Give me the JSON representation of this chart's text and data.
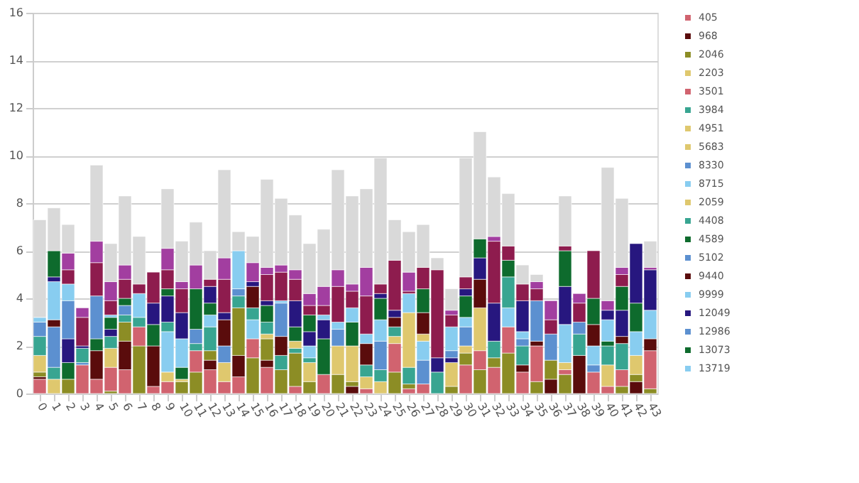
{
  "chart_data": {
    "type": "bar",
    "stacked": true,
    "categories": [
      "0",
      "1",
      "2",
      "3",
      "4",
      "5",
      "6",
      "7",
      "8",
      "9",
      "10",
      "11",
      "12",
      "13",
      "14",
      "15",
      "16",
      "17",
      "18",
      "19",
      "20",
      "21",
      "22",
      "23",
      "24",
      "25",
      "26",
      "27",
      "28",
      "29",
      "30",
      "31",
      "32",
      "33",
      "34",
      "35",
      "36",
      "37",
      "38",
      "39",
      "40",
      "41",
      "42",
      "43"
    ],
    "ylim": [
      0,
      16
    ],
    "yticks": [
      0,
      2,
      4,
      6,
      8,
      10,
      12,
      14,
      16
    ],
    "grid": "y",
    "legend": "right",
    "series": [
      {
        "name": "405",
        "color": "#d1636f",
        "values": [
          0.6,
          null,
          null,
          null,
          0.6,
          null,
          1.0,
          null,
          0.3,
          null,
          null,
          null,
          1.0,
          null,
          0.7,
          null,
          1.1,
          null,
          0.3,
          null,
          0.8,
          null,
          null,
          null,
          null,
          null,
          0.2,
          null,
          null,
          null,
          1.2,
          null,
          1.1,
          null,
          0.9,
          null,
          null,
          null,
          null,
          null,
          0.3,
          null,
          null,
          null
        ]
      },
      {
        "name": "968",
        "color": "#5a0c0c",
        "values": [
          0.1,
          null,
          null,
          null,
          1.2,
          null,
          1.2,
          null,
          1.7,
          null,
          null,
          null,
          0.4,
          null,
          0.9,
          null,
          0.3,
          null,
          null,
          null,
          null,
          null,
          0.3,
          null,
          null,
          null,
          null,
          null,
          null,
          null,
          null,
          null,
          null,
          null,
          0.3,
          null,
          0.6,
          null,
          1.6,
          null,
          null,
          null,
          0.5,
          null
        ]
      },
      {
        "name": "2046",
        "color": "#8c8d25",
        "values": [
          0.2,
          null,
          0.6,
          null,
          null,
          0.1,
          0.8,
          2.0,
          null,
          null,
          0.5,
          0.9,
          0.4,
          null,
          2.0,
          1.5,
          0.9,
          1.0,
          1.4,
          0.5,
          null,
          0.8,
          0.2,
          null,
          null,
          0.9,
          0.2,
          null,
          null,
          0.3,
          0.5,
          1.0,
          0.4,
          1.7,
          null,
          0.5,
          0.8,
          0.8,
          null,
          null,
          null,
          0.3,
          0.3,
          0.2
        ]
      },
      {
        "name": "2203",
        "color": "#dfc86e",
        "values": [
          0.7,
          null,
          null,
          null,
          null,
          null,
          null,
          null,
          null,
          null,
          null,
          null,
          null,
          null,
          null,
          null,
          0.2,
          null,
          null,
          null,
          null,
          null,
          null,
          null,
          0.5,
          null,
          null,
          null,
          null,
          null,
          null,
          null,
          null,
          null,
          null,
          null,
          null,
          null,
          null,
          null,
          0.9,
          null,
          null,
          null
        ]
      },
      {
        "name": "3501",
        "color": "#d1636f",
        "values": [
          null,
          null,
          null,
          1.2,
          null,
          1.0,
          null,
          0.8,
          null,
          0.5,
          null,
          0.9,
          null,
          0.5,
          null,
          0.8,
          null,
          null,
          null,
          null,
          null,
          null,
          null,
          0.2,
          null,
          1.2,
          null,
          0.4,
          null,
          null,
          null,
          0.8,
          null,
          1.1,
          null,
          1.5,
          null,
          0.2,
          null,
          0.9,
          null,
          0.7,
          null,
          1.6
        ]
      },
      {
        "name": "3984",
        "color": "#38a591",
        "values": [
          0.8,
          null,
          null,
          null,
          null,
          null,
          0.3,
          null,
          null,
          null,
          null,
          null,
          1.0,
          null,
          0.5,
          null,
          0.5,
          null,
          0.2,
          null,
          null,
          null,
          null,
          null,
          0.5,
          null,
          0.7,
          null,
          0.9,
          null,
          null,
          null,
          0.7,
          null,
          0.8,
          null,
          null,
          null,
          0.9,
          null,
          0.8,
          null,
          null,
          null
        ]
      },
      {
        "name": "4951",
        "color": "#dfc86e",
        "values": [
          null,
          0.6,
          null,
          null,
          null,
          0.8,
          null,
          null,
          null,
          0.4,
          null,
          null,
          null,
          0.8,
          null,
          null,
          null,
          null,
          null,
          null,
          null,
          1.2,
          null,
          null,
          null,
          0.3,
          null,
          null,
          null,
          1.0,
          null,
          null,
          null,
          null,
          null,
          null,
          null,
          0.3,
          null,
          null,
          null,
          null,
          null,
          null
        ]
      },
      {
        "name": "5683",
        "color": "#dfc86e",
        "values": [
          null,
          null,
          null,
          null,
          null,
          null,
          null,
          null,
          null,
          null,
          0.1,
          null,
          null,
          null,
          null,
          null,
          null,
          null,
          0.3,
          null,
          null,
          null,
          1.5,
          null,
          null,
          null,
          2.3,
          null,
          null,
          null,
          0.3,
          null,
          null,
          null,
          null,
          null,
          null,
          null,
          null,
          null,
          null,
          null,
          0.8,
          null
        ]
      },
      {
        "name": "8330",
        "color": "#5c90d0",
        "values": [
          0.6,
          null,
          null,
          0.1,
          null,
          null,
          0.4,
          null,
          null,
          null,
          null,
          null,
          null,
          null,
          null,
          null,
          null,
          null,
          null,
          null,
          null,
          0.7,
          null,
          null,
          1.2,
          null,
          null,
          1.0,
          null,
          null,
          0.8,
          null,
          null,
          null,
          null,
          null,
          1.1,
          null,
          null,
          0.3,
          null,
          null,
          null,
          null
        ]
      },
      {
        "name": "8715",
        "color": "#88cdf0",
        "values": [
          0.2,
          null,
          null,
          null,
          null,
          null,
          null,
          null,
          null,
          1.7,
          null,
          null,
          0.5,
          null,
          null,
          0.8,
          null,
          null,
          null,
          null,
          null,
          0.3,
          null,
          null,
          0.9,
          null,
          null,
          0.8,
          null,
          null,
          0.4,
          null,
          null,
          0.8,
          null,
          null,
          null,
          null,
          null,
          0.8,
          null,
          null,
          1.0,
          null
        ]
      },
      {
        "name": "2059",
        "color": "#dfc86e",
        "values": [
          null,
          null,
          null,
          null,
          null,
          null,
          null,
          null,
          null,
          null,
          null,
          null,
          null,
          null,
          null,
          null,
          null,
          null,
          null,
          0.8,
          null,
          null,
          null,
          0.5,
          null,
          null,
          null,
          0.3,
          null,
          null,
          null,
          1.8,
          null,
          null,
          null,
          null,
          null,
          null,
          null,
          null,
          null,
          null,
          null,
          null
        ]
      },
      {
        "name": "4408",
        "color": "#38a591",
        "values": [
          null,
          0.5,
          null,
          0.6,
          null,
          0.5,
          null,
          0.4,
          null,
          0.4,
          null,
          0.3,
          null,
          null,
          null,
          0.5,
          null,
          0.6,
          null,
          0.2,
          null,
          null,
          null,
          0.5,
          null,
          0.4,
          null,
          null,
          null,
          null,
          null,
          null,
          null,
          1.3,
          null,
          null,
          null,
          null,
          null,
          null,
          null,
          1.1,
          null,
          null
        ]
      },
      {
        "name": "4589",
        "color": "#0e6b2d",
        "values": [
          null,
          null,
          0.7,
          null,
          0.5,
          null,
          0.3,
          null,
          0.9,
          null,
          0.5,
          null,
          0.5,
          null,
          null,
          null,
          0.7,
          null,
          0.6,
          null,
          1.5,
          null,
          1.0,
          null,
          0.9,
          null,
          null,
          null,
          null,
          null,
          0.9,
          null,
          null,
          null,
          null,
          null,
          null,
          null,
          null,
          null,
          0.2,
          null,
          1.2,
          null
        ]
      },
      {
        "name": "5102",
        "color": "#5c90d0",
        "values": [
          null,
          1.7,
          null,
          null,
          1.8,
          null,
          null,
          null,
          null,
          null,
          null,
          null,
          null,
          0.7,
          null,
          null,
          null,
          null,
          null,
          null,
          null,
          null,
          null,
          null,
          null,
          null,
          null,
          null,
          null,
          null,
          null,
          null,
          null,
          null,
          0.3,
          null,
          null,
          null,
          null,
          null,
          null,
          null,
          null,
          null
        ]
      },
      {
        "name": "9440",
        "color": "#5a0c0c",
        "values": [
          null,
          0.3,
          null,
          null,
          null,
          null,
          null,
          null,
          null,
          null,
          null,
          null,
          null,
          1.1,
          null,
          0.9,
          null,
          0.8,
          null,
          null,
          null,
          null,
          null,
          0.9,
          null,
          0.4,
          null,
          0.9,
          null,
          null,
          null,
          1.2,
          null,
          null,
          null,
          0.2,
          null,
          null,
          null,
          0.9,
          null,
          0.3,
          null,
          0.5
        ]
      },
      {
        "name": "9999",
        "color": "#88cdf0",
        "values": [
          null,
          1.6,
          null,
          null,
          null,
          null,
          null,
          1.0,
          null,
          null,
          1.2,
          null,
          null,
          null,
          null,
          null,
          null,
          null,
          null,
          0.5,
          null,
          null,
          0.6,
          null,
          null,
          null,
          null,
          null,
          null,
          null,
          null,
          null,
          null,
          null,
          0.3,
          null,
          null,
          1.6,
          null,
          null,
          0.9,
          null,
          null,
          1.2
        ]
      },
      {
        "name": "12049",
        "color": "#27177f",
        "values": [
          null,
          0.2,
          1.0,
          0.1,
          null,
          0.3,
          null,
          null,
          0.9,
          1.1,
          1.1,
          null,
          0.7,
          0.3,
          null,
          0.2,
          0.2,
          null,
          1.1,
          0.6,
          0.8,
          null,
          null,
          null,
          0.2,
          0.3,
          null,
          null,
          0.6,
          0.2,
          0.3,
          0.9,
          1.6,
          null,
          1.3,
          null,
          null,
          1.6,
          null,
          null,
          0.4,
          1.1,
          2.5,
          1.7
        ]
      },
      {
        "name": "12986",
        "color": "#5c90d0",
        "values": [
          null,
          null,
          1.6,
          null,
          null,
          null,
          null,
          null,
          null,
          null,
          null,
          0.6,
          null,
          null,
          0.3,
          null,
          null,
          1.4,
          null,
          null,
          null,
          null,
          null,
          null,
          null,
          null,
          null,
          null,
          null,
          0.3,
          null,
          null,
          null,
          null,
          null,
          1.7,
          null,
          null,
          0.5,
          null,
          null,
          null,
          null,
          null
        ]
      },
      {
        "name": "13073",
        "color": "#0e6b2d",
        "values": [
          null,
          1.1,
          null,
          null,
          null,
          0.5,
          null,
          null,
          null,
          0.3,
          null,
          1.7,
          null,
          null,
          null,
          null,
          null,
          null,
          null,
          0.7,
          null,
          null,
          null,
          null,
          null,
          null,
          null,
          1.0,
          null,
          null,
          null,
          0.8,
          null,
          0.7,
          null,
          null,
          null,
          1.5,
          null,
          1.1,
          null,
          1.0,
          null,
          null
        ]
      },
      {
        "name": "13719",
        "color": "#88cdf0",
        "values": [
          null,
          null,
          0.7,
          null,
          null,
          0.1,
          null,
          null,
          null,
          null,
          null,
          null,
          null,
          null,
          1.6,
          null,
          null,
          0.1,
          null,
          null,
          0.2,
          null,
          null,
          0.4,
          null,
          null,
          0.8,
          null,
          null,
          1.0,
          null,
          null,
          null,
          null,
          null,
          null,
          null,
          null,
          null,
          null,
          null,
          null,
          null,
          null
        ]
      },
      {
        "color": "#8e1c4e",
        "values": [
          null,
          null,
          0.6,
          1.2,
          1.4,
          0.6,
          0.8,
          0.4,
          1.3,
          0.8,
          1.0,
          null,
          0.3,
          1.4,
          null,
          null,
          1.1,
          1.2,
          0.9,
          0.4,
          0.4,
          1.5,
          0.7,
          1.6,
          0.4,
          2.1,
          0.1,
          0.9,
          3.7,
          0.5,
          0.5,
          null,
          2.6,
          0.6,
          0.7,
          0.5,
          0.6,
          0.2,
          0.8,
          2.0,
          null,
          0.5,
          null,
          null
        ]
      },
      {
        "color": "#a23ea0",
        "values": [
          null,
          null,
          0.7,
          0.4,
          0.9,
          0.8,
          0.6,
          null,
          null,
          0.9,
          0.3,
          1.0,
          null,
          0.9,
          null,
          0.8,
          0.3,
          0.3,
          0.4,
          0.5,
          0.8,
          0.7,
          0.3,
          1.2,
          null,
          null,
          0.8,
          null,
          null,
          0.2,
          null,
          null,
          0.2,
          null,
          null,
          0.3,
          0.8,
          null,
          0.4,
          null,
          0.4,
          0.3,
          null,
          0.1
        ]
      },
      {
        "color": "#d9d9d9",
        "values": [
          4.1,
          1.8,
          1.2,
          null,
          3.2,
          1.6,
          2.9,
          2.0,
          null,
          2.5,
          1.7,
          1.8,
          1.2,
          3.7,
          0.8,
          1.1,
          3.7,
          2.8,
          2.3,
          2.1,
          2.4,
          4.2,
          3.7,
          3.3,
          5.3,
          1.7,
          1.7,
          1.8,
          0.5,
          0.9,
          5.0,
          4.5,
          2.5,
          2.2,
          0.8,
          0.3,
          null,
          2.1,
          null,
          null,
          5.6,
          2.9,
          null,
          1.1
        ]
      }
    ]
  }
}
